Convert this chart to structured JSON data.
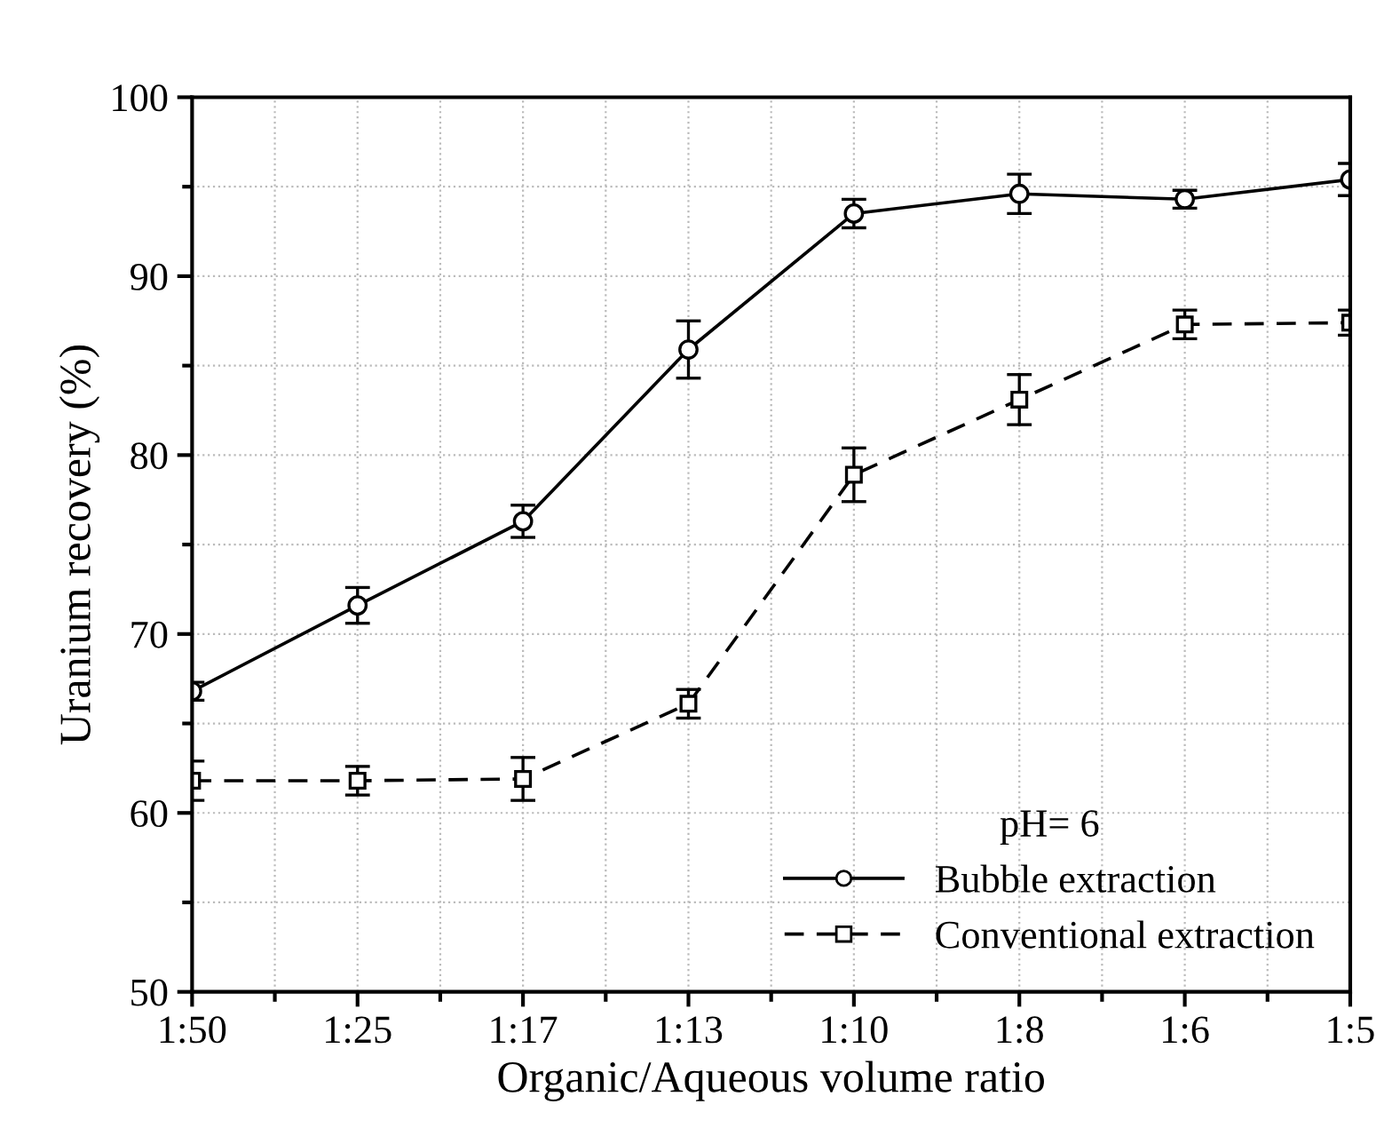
{
  "chart_data": {
    "type": "line",
    "xlabel": "Organic/Aqueous volume ratio",
    "ylabel": "Uranium recovery (%)",
    "legend_title": "pH= 6",
    "categories": [
      "1:50",
      "1:25",
      "1:17",
      "1:13",
      "1:10",
      "1:8",
      "1:6",
      "1:5"
    ],
    "series": [
      {
        "name": "Bubble extraction",
        "color": "#000000",
        "marker": "circle",
        "line_style": "solid",
        "values": [
          66.8,
          71.6,
          76.3,
          85.9,
          93.5,
          94.6,
          94.3,
          95.4
        ],
        "errors": [
          0.5,
          1.0,
          0.9,
          1.6,
          0.8,
          1.1,
          0.5,
          0.9
        ]
      },
      {
        "name": "Conventional extraction",
        "color": "#000000",
        "marker": "square",
        "line_style": "dashed",
        "values": [
          61.8,
          61.8,
          61.9,
          66.1,
          78.9,
          83.1,
          87.3,
          87.4
        ],
        "errors": [
          1.1,
          0.8,
          1.2,
          0.8,
          1.5,
          1.4,
          0.8,
          0.7
        ]
      }
    ],
    "ylim": [
      50,
      100
    ],
    "yticks": [
      50,
      60,
      70,
      80,
      90,
      100
    ],
    "grid": true,
    "legend": "bottom right"
  }
}
